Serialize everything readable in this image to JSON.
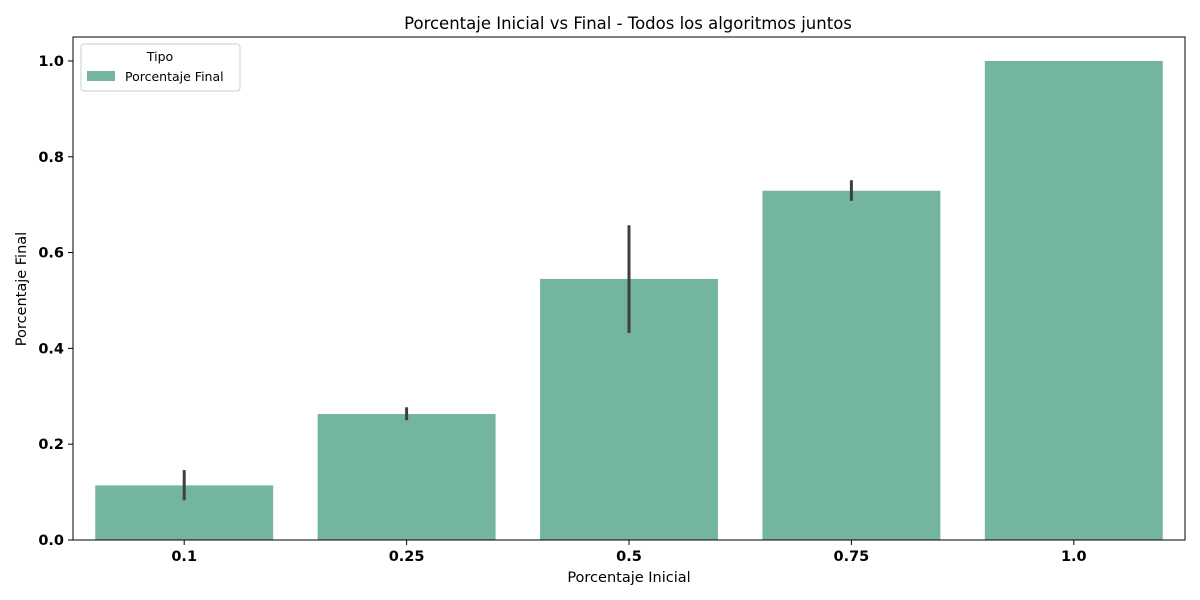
{
  "chart_data": {
    "type": "bar",
    "title": "Porcentaje Inicial vs Final - Todos los algoritmos juntos",
    "xlabel": "Porcentaje Inicial",
    "ylabel": "Porcentaje Final",
    "categories": [
      "0.1",
      "0.25",
      "0.5",
      "0.75",
      "1.0"
    ],
    "series": [
      {
        "name": "Porcentaje Final",
        "color": "#73b5a0",
        "values": [
          0.114,
          0.263,
          0.545,
          0.729,
          1.0
        ],
        "error_low": [
          0.083,
          0.25,
          0.432,
          0.708,
          1.0
        ],
        "error_high": [
          0.146,
          0.277,
          0.657,
          0.751,
          1.0
        ]
      }
    ],
    "ylim": [
      0,
      1.05
    ],
    "yticks": [
      "0.0",
      "0.2",
      "0.4",
      "0.6",
      "0.8",
      "1.0"
    ],
    "legend": {
      "title": "Tipo",
      "placement": "top-left"
    },
    "grid": false,
    "error_bar_color": "#3f3f3f"
  }
}
